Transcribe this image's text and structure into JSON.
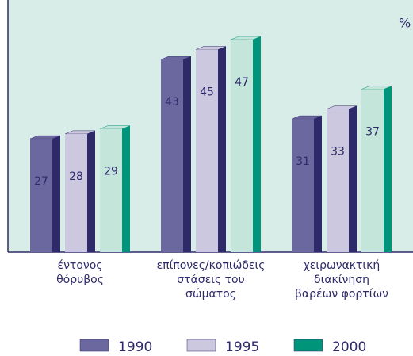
{
  "chart_data": {
    "type": "bar3d",
    "unit": "%",
    "categories": [
      "έντονος\nθόρυβος",
      "επίπονες/κοπιώδεις\nστάσεις του\nσώματος",
      "χειρωνακτική\nδιακίνηση\nβαρέων φορτίων"
    ],
    "series": [
      {
        "name": "1990",
        "color": "#6b689f",
        "side_color": "#2e2a6a",
        "values": [
          27,
          43,
          31
        ]
      },
      {
        "name": "1995",
        "color": "#ccc8df",
        "side_color": "#2e2a6a",
        "values": [
          28,
          45,
          33
        ]
      },
      {
        "name": "2000",
        "color": "#00957a",
        "front_color": "#c3e5da",
        "side_color": "#00957a",
        "values": [
          29,
          47,
          37
        ]
      }
    ],
    "ylim": [
      0,
      55
    ]
  }
}
